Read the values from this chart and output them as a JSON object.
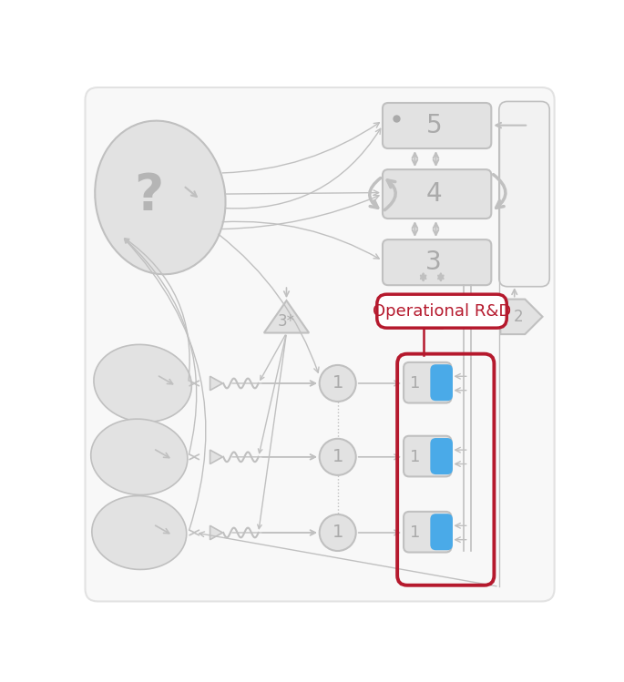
{
  "bg_color": "#ffffff",
  "lg": "#e2e2e2",
  "g": "#c0c0c0",
  "dg": "#aaaaaa",
  "blue": "#4aaae8",
  "red": "#b5192d",
  "ac": "#b8b8b8"
}
